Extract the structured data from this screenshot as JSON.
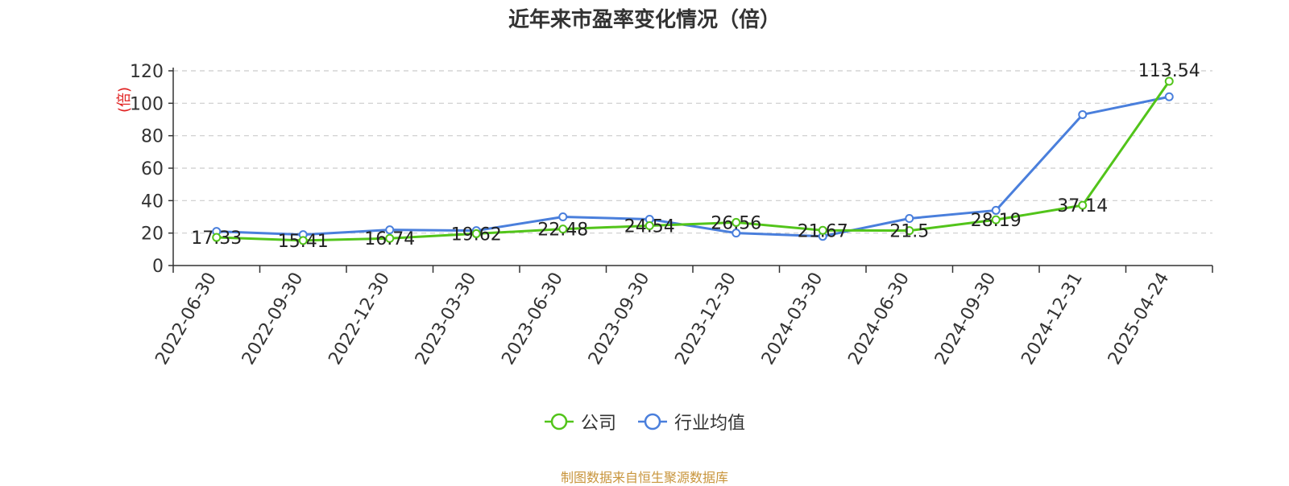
{
  "chart_data": {
    "type": "line",
    "title": "近年来市盈率变化情况（倍）",
    "ylabel": "(倍)",
    "xlabel": "",
    "ylim": [
      0,
      120
    ],
    "yticks": [
      0,
      20,
      40,
      60,
      80,
      100,
      120
    ],
    "grid": true,
    "legend_position": "bottom",
    "categories": [
      "2022-06-30",
      "2022-09-30",
      "2022-12-30",
      "2023-03-30",
      "2023-06-30",
      "2023-09-30",
      "2023-12-30",
      "2024-03-30",
      "2024-06-30",
      "2024-09-30",
      "2024-12-31",
      "2025-04-24"
    ],
    "series": [
      {
        "name": "公司",
        "color": "#52c41a",
        "values": [
          17.33,
          15.41,
          16.74,
          19.62,
          22.48,
          24.54,
          26.56,
          21.67,
          21.5,
          28.19,
          37.14,
          113.54
        ],
        "labels": [
          "17.33",
          "15.41",
          "16.74",
          "19.62",
          "22.48",
          "24.54",
          "26.56",
          "21.67",
          "21.5",
          "28.19",
          "37.14",
          "113.54"
        ]
      },
      {
        "name": "行业均值",
        "color": "#4a7fdc",
        "values": [
          21,
          19,
          22,
          21.5,
          30,
          28.5,
          20,
          18,
          29,
          34,
          93,
          104
        ]
      }
    ]
  },
  "source_note": "制图数据来自恒生聚源数据库"
}
